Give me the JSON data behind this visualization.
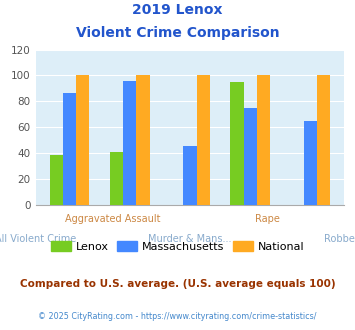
{
  "title_line1": "2019 Lenox",
  "title_line2": "Violent Crime Comparison",
  "lenox": [
    38,
    41,
    0,
    95,
    0
  ],
  "massachusetts": [
    86,
    96,
    45,
    75,
    65
  ],
  "national": [
    100,
    100,
    100,
    100,
    100
  ],
  "colors": {
    "lenox": "#77cc22",
    "massachusetts": "#4488ff",
    "national": "#ffaa22"
  },
  "ylim": [
    0,
    120
  ],
  "yticks": [
    0,
    20,
    40,
    60,
    80,
    100,
    120
  ],
  "plot_bg": "#ddeef8",
  "title_color": "#2255cc",
  "xlabel_top_color": "#cc8844",
  "xlabel_bot_color": "#88aacc",
  "footer_color": "#993300",
  "credit_color": "#4488cc",
  "footer_text": "Compared to U.S. average. (U.S. average equals 100)",
  "credit_text": "© 2025 CityRating.com - https://www.cityrating.com/crime-statistics/",
  "legend_labels": [
    "Lenox",
    "Massachusetts",
    "National"
  ],
  "top_labels": [
    "",
    "Aggravated Assault",
    "",
    "Rape",
    ""
  ],
  "bot_labels": [
    "All Violent Crime",
    "",
    "Murder & Mans...",
    "",
    "Robbery"
  ]
}
